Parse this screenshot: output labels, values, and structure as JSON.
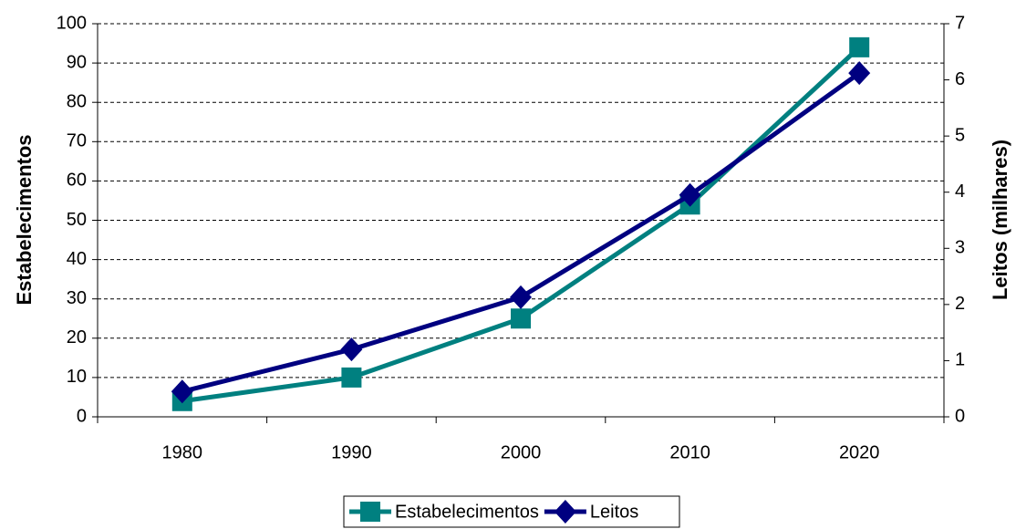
{
  "chart_data": {
    "type": "line",
    "categories": [
      "1980",
      "1990",
      "2000",
      "2010",
      "2020"
    ],
    "y_label": "Estabelecimentos",
    "y2_label": "Leitos (milhares)",
    "ylim": [
      0,
      100
    ],
    "yticks": [
      0,
      10,
      20,
      30,
      40,
      50,
      60,
      70,
      80,
      90,
      100
    ],
    "y2lim": [
      0,
      7
    ],
    "y2ticks": [
      0,
      1,
      2,
      3,
      4,
      5,
      6,
      7
    ],
    "grid": true,
    "legend": "bottom",
    "series": [
      {
        "name": "Estabelecimentos",
        "color": "#008080",
        "marker": "square",
        "values": [
          4,
          10,
          25,
          54,
          94
        ]
      },
      {
        "name": "Leitos",
        "color": "#000080",
        "marker": "diamond",
        "axis": "y2",
        "values": [
          0.45,
          1.2,
          2.13,
          3.95,
          6.12
        ]
      }
    ]
  }
}
